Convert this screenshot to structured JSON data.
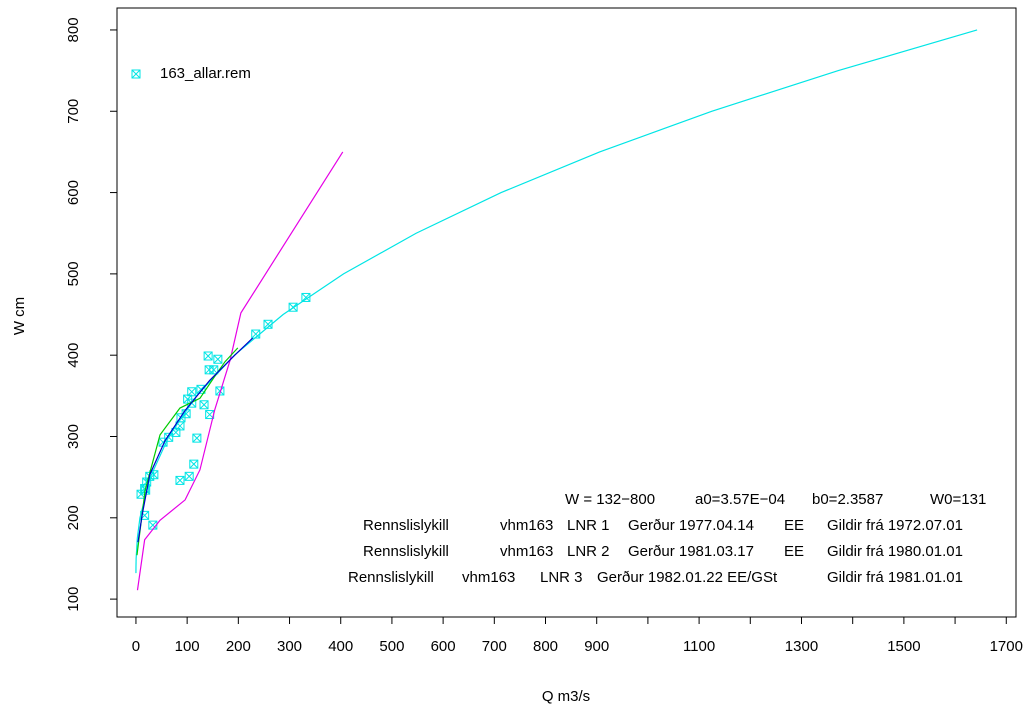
{
  "chart_data": {
    "type": "scatter",
    "xlabel": "Q m3/s",
    "ylabel": "W cm",
    "xlim": [
      -37,
      1719
    ],
    "ylim": [
      78,
      827
    ],
    "xticks": [
      0,
      100,
      200,
      300,
      400,
      500,
      600,
      700,
      800,
      900,
      1100,
      1300,
      1500,
      1700
    ],
    "xminor_ticks": [
      1000,
      1200,
      1400,
      1600
    ],
    "yticks": [
      100,
      200,
      300,
      400,
      500,
      600,
      700,
      800
    ],
    "legend": "top-left",
    "series": [
      {
        "name": "163_allar.rem",
        "color": "#00e5e5",
        "marker": "boxed-x",
        "x": [
          10,
          17,
          33,
          17,
          21,
          27,
          35,
          19,
          53,
          64,
          78,
          88,
          86,
          86,
          98,
          101,
          104,
          109,
          109,
          113,
          119,
          127,
          133,
          141,
          143,
          144,
          152,
          160,
          164,
          234,
          258,
          307,
          332
        ],
        "values": [
          229,
          203,
          191,
          236,
          244,
          251,
          253,
          234,
          293,
          299,
          305,
          323,
          313,
          246,
          328,
          346,
          251,
          355,
          341,
          266,
          298,
          358,
          339,
          399,
          382,
          327,
          382,
          395,
          356,
          426,
          438,
          459,
          471
        ]
      },
      {
        "color": "#00e5e5",
        "line": true,
        "x": [
          0.0004,
          0.064,
          0.37,
          2.69,
          7.77,
          28.1,
          64.2,
          118.4,
          192.3,
          287.5,
          405.5,
          547.3,
          713.3,
          905.7,
          1124.6,
          1372,
          1643
        ],
        "values": [
          132,
          140,
          150,
          175,
          200,
          250,
          300,
          350,
          400,
          450,
          500,
          550,
          600,
          650,
          700,
          750,
          800
        ]
      },
      {
        "color": "#e600e6",
        "line": true,
        "x": [
          3,
          17,
          47,
          96,
          125,
          154,
          184,
          205,
          404
        ],
        "values": [
          111,
          173,
          197,
          222,
          259,
          333,
          394,
          452,
          650
        ]
      },
      {
        "color": "#00cc00",
        "line": true,
        "x": [
          2,
          18,
          47,
          86,
          125,
          154,
          174,
          199
        ],
        "values": [
          154,
          234,
          302,
          335,
          347,
          374,
          392,
          409
        ]
      },
      {
        "color": "#0000cc",
        "line": true,
        "x": [
          4,
          12,
          27,
          57,
          96,
          144,
          193,
          228
        ],
        "values": [
          170,
          203,
          253,
          295,
          332,
          369,
          400,
          421
        ]
      }
    ],
    "annotations": [
      {
        "color": "#00e5e5",
        "fields": [
          "W = 132−800",
          "a0=3.57E−04",
          "b0=2.3587",
          "W0=131"
        ]
      },
      {
        "color": "#e600e6",
        "fields": [
          "Rennslislykill",
          "vhm163",
          "LNR  1",
          "Gerður 1977.04.14",
          "EE",
          "Gildir frá 1972.07.01"
        ]
      },
      {
        "color": "#00cc00",
        "fields": [
          "Rennslislykill",
          "vhm163",
          "LNR  2",
          "Gerður 1981.03.17",
          "EE",
          "Gildir frá 1980.01.01"
        ]
      },
      {
        "color": "#0000cc",
        "fields": [
          "Rennslislykill",
          "vhm163",
          "LNR 3",
          "Gerður 1982.01.22 EE/GSt",
          "Gildir frá 1981.01.01"
        ]
      }
    ]
  }
}
